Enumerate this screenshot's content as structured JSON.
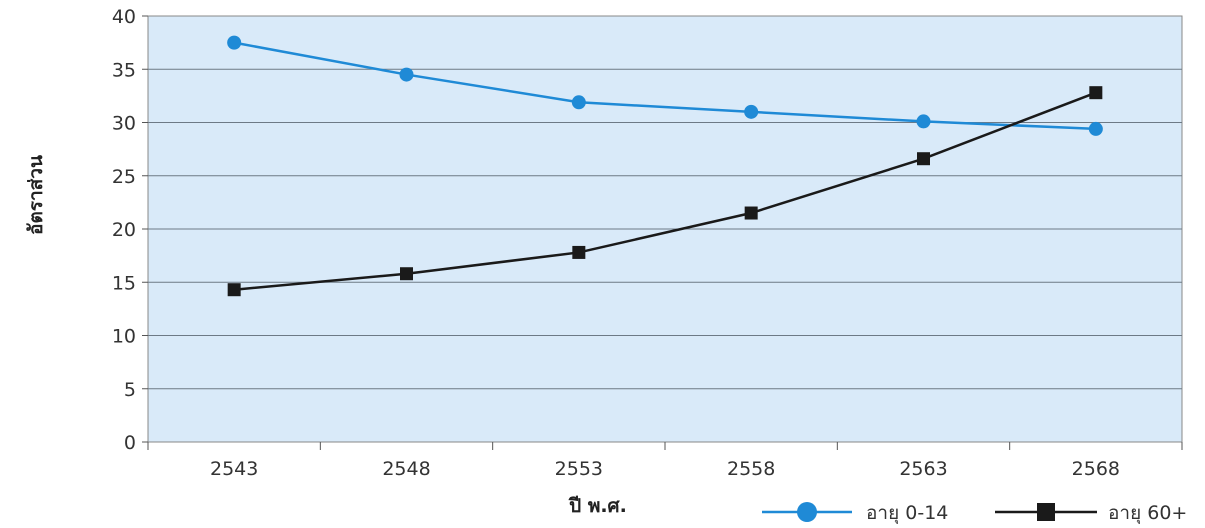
{
  "chart_data": {
    "type": "line",
    "title": "",
    "xlabel": "ปี พ.ศ.",
    "ylabel": "อัตราส่วน",
    "categories": [
      "2543",
      "2548",
      "2553",
      "2558",
      "2563",
      "2568"
    ],
    "ylim": [
      0,
      40
    ],
    "yticks": [
      "0",
      "5",
      "10",
      "15",
      "20",
      "25",
      "30",
      "35",
      "40"
    ],
    "grid": true,
    "legend_position": "bottom-right",
    "plot_background": "#d9eaf9",
    "series": [
      {
        "name": "อายุ 0-14",
        "values": [
          37.5,
          34.5,
          31.9,
          31.0,
          30.1,
          29.4
        ],
        "color": "#1f8ad6",
        "marker": "circle"
      },
      {
        "name": "อายุ 60+",
        "values": [
          14.3,
          15.8,
          17.8,
          21.5,
          26.6,
          32.8
        ],
        "color": "#1a1a1a",
        "marker": "square"
      }
    ]
  }
}
